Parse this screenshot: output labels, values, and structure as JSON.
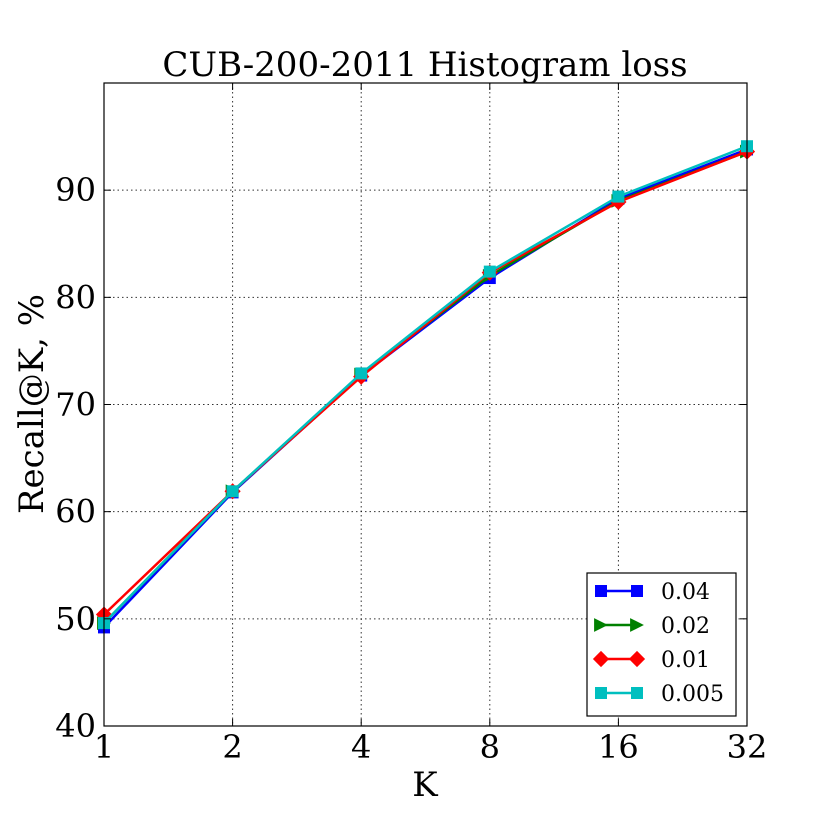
{
  "chart_data": {
    "type": "line",
    "title": "CUB-200-2011 Histogram loss",
    "xlabel": "K",
    "ylabel": "Recall@K, %",
    "x_scale": "log2",
    "categories": [
      "1",
      "2",
      "4",
      "8",
      "16",
      "32"
    ],
    "x": [
      1,
      2,
      4,
      8,
      16,
      32
    ],
    "ylim": [
      40,
      100
    ],
    "yticks": [
      40,
      50,
      60,
      70,
      80,
      90
    ],
    "grid": true,
    "legend_position": "bottom-right",
    "series": [
      {
        "name": "0.04",
        "color": "#0000ff",
        "marker": "square",
        "values": [
          49.2,
          61.8,
          72.7,
          81.8,
          89.2,
          93.8
        ]
      },
      {
        "name": "0.02",
        "color": "#008000",
        "marker": "triangle-right",
        "values": [
          49.6,
          61.9,
          72.8,
          82.0,
          89.0,
          93.6
        ]
      },
      {
        "name": "0.01",
        "color": "#ff0000",
        "marker": "diamond",
        "values": [
          50.4,
          61.9,
          72.6,
          82.3,
          88.9,
          93.6
        ]
      },
      {
        "name": "0.005",
        "color": "#00bfbf",
        "marker": "square",
        "values": [
          49.6,
          61.9,
          72.9,
          82.4,
          89.4,
          94.1
        ]
      }
    ]
  }
}
